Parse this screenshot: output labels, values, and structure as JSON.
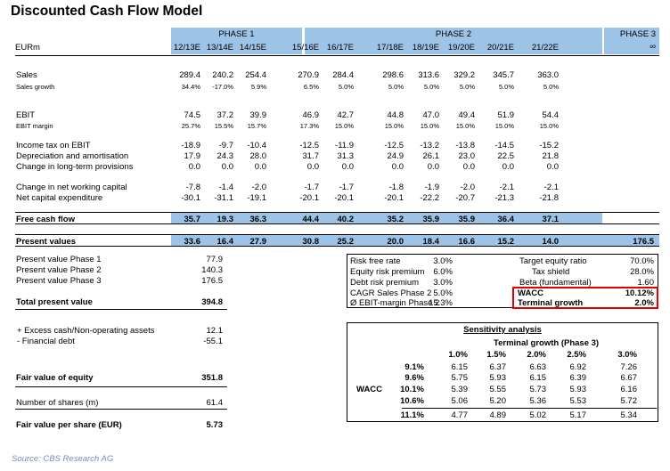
{
  "title": "Discounted Cash Flow Model",
  "unit": "EURm",
  "phases": [
    "PHASE 1",
    "PHASE 2",
    "PHASE 3"
  ],
  "years": [
    "12/13E",
    "13/14E",
    "14/15E",
    "15/16E",
    "16/17E",
    "17/18E",
    "18/19E",
    "19/20E",
    "20/21E",
    "21/22E"
  ],
  "terminal_symbol": "∞",
  "rows": [
    {
      "key": "sales",
      "label": "Sales",
      "size": "hl",
      "values": [
        "289.4",
        "240.2",
        "254.4",
        "270.9",
        "284.4",
        "298.6",
        "313.6",
        "329.2",
        "345.7",
        "363.0"
      ],
      "terminal": ""
    },
    {
      "key": "sales-growth",
      "label": "Sales growth",
      "size": "sm",
      "values": [
        "34.4%",
        "-17.0%",
        "5.9%",
        "6.5%",
        "5.0%",
        "5.0%",
        "5.0%",
        "5.0%",
        "5.0%",
        "5.0%"
      ],
      "terminal": ""
    },
    {
      "key": "ebit",
      "label": "EBIT",
      "size": "hl",
      "values": [
        "74.5",
        "37.2",
        "39.9",
        "46.9",
        "42.7",
        "44.8",
        "47.0",
        "49.4",
        "51.9",
        "54.4"
      ],
      "terminal": ""
    },
    {
      "key": "ebit-margin",
      "label": "EBIT margin",
      "size": "sm",
      "values": [
        "25.7%",
        "15.5%",
        "15.7%",
        "17.3%",
        "15.0%",
        "15.0%",
        "15.0%",
        "15.0%",
        "15.0%",
        "15.0%"
      ],
      "terminal": ""
    },
    {
      "key": "income-tax",
      "label": "Income tax on EBIT",
      "size": "hl",
      "values": [
        "-18.9",
        "-9.7",
        "-10.4",
        "-12.5",
        "-11.9",
        "-12.5",
        "-13.2",
        "-13.8",
        "-14.5",
        "-15.2"
      ],
      "terminal": ""
    },
    {
      "key": "depreciation",
      "label": "Depreciation and amortisation",
      "size": "hl",
      "values": [
        "17.9",
        "24.3",
        "28.0",
        "31.7",
        "31.3",
        "24.9",
        "26.1",
        "23.0",
        "22.5",
        "21.8"
      ],
      "terminal": ""
    },
    {
      "key": "provisions",
      "label": "Change in long-term provisions",
      "size": "hl",
      "values": [
        "0.0",
        "0.0",
        "0.0",
        "0.0",
        "0.0",
        "0.0",
        "0.0",
        "0.0",
        "0.0",
        "0.0"
      ],
      "terminal": ""
    },
    {
      "key": "nwc",
      "label": "Change in net working capital",
      "size": "hl",
      "values": [
        "-7.8",
        "-1.4",
        "-2.0",
        "-1.7",
        "-1.7",
        "-1.8",
        "-1.9",
        "-2.0",
        "-2.1",
        "-2.1"
      ],
      "terminal": ""
    },
    {
      "key": "capex",
      "label": "Net capital expenditure",
      "size": "hl",
      "values": [
        "-30.1",
        "-31.1",
        "-19.1",
        "-20.1",
        "-20.1",
        "-20.1",
        "-22.2",
        "-20.7",
        "-21.3",
        "-21.8"
      ],
      "terminal": ""
    },
    {
      "key": "fcf",
      "label": "Free cash flow",
      "size": "hl",
      "values": [
        "35.7",
        "19.3",
        "36.3",
        "44.4",
        "40.2",
        "35.2",
        "35.9",
        "35.9",
        "36.4",
        "37.1"
      ],
      "terminal": ""
    },
    {
      "key": "pv",
      "label": "Present values",
      "size": "hl",
      "values": [
        "33.6",
        "16.4",
        "27.9",
        "30.8",
        "25.2",
        "20.0",
        "18.4",
        "16.6",
        "15.2",
        "14.0"
      ],
      "terminal": "176.5"
    }
  ],
  "summary": [
    {
      "label": "Present value Phase 1",
      "value": "77.9"
    },
    {
      "label": "Present value Phase 2",
      "value": "140.3"
    },
    {
      "label": "Present value Phase 3",
      "value": "176.5"
    },
    {
      "label": "Total present value",
      "value": "394.8"
    },
    {
      "label": "+ Excess cash/Non-operating assets",
      "value": "12.1"
    },
    {
      "label": "- Financial debt",
      "value": "-55.1"
    },
    {
      "label": "Fair value of equity",
      "value": "351.8"
    },
    {
      "label": "Number of shares (m)",
      "value": "61.4"
    },
    {
      "label": "Fair value per share (EUR)",
      "value": "5.73"
    }
  ],
  "assumptions": {
    "left": [
      {
        "label": "Risk free rate",
        "value": "3.0%"
      },
      {
        "label": "Equity risk premium",
        "value": "6.0%"
      },
      {
        "label": "Debt risk premium",
        "value": "3.0%"
      },
      {
        "label": "CAGR Sales Phase 2",
        "value": "5.0%"
      },
      {
        "label": "Ø EBIT-margin Phase 2",
        "value": "15.3%"
      }
    ],
    "right": [
      {
        "label": "Target equity ratio",
        "value": "70.0%"
      },
      {
        "label": "Tax shield",
        "value": "28.0%"
      },
      {
        "label": "Beta (fundamental)",
        "value": "1.60"
      },
      {
        "label": "WACC",
        "value": "10.12%"
      },
      {
        "label": "Terminal growth",
        "value": "2.0%"
      }
    ]
  },
  "sensitivity": {
    "title": "Sensitivity analysis",
    "col_header": "Terminal growth (Phase 3)",
    "row_header": "WACC",
    "cols": [
      "1.0%",
      "1.5%",
      "2.0%",
      "2.5%",
      "3.0%"
    ],
    "rows": [
      {
        "wacc": "9.1%",
        "values": [
          "6.15",
          "6.37",
          "6.63",
          "6.92",
          "7.26"
        ]
      },
      {
        "wacc": "9.6%",
        "values": [
          "5.75",
          "5.93",
          "6.15",
          "6.39",
          "6.67"
        ]
      },
      {
        "wacc": "10.1%",
        "values": [
          "5.39",
          "5.55",
          "5.73",
          "5.93",
          "6.16"
        ]
      },
      {
        "wacc": "10.6%",
        "values": [
          "5.06",
          "5.20",
          "5.36",
          "5.53",
          "5.72"
        ]
      },
      {
        "wacc": "11.1%",
        "values": [
          "4.77",
          "4.89",
          "5.02",
          "5.17",
          "5.34"
        ]
      }
    ]
  },
  "source": "Source: CBS Research AG",
  "colors": {
    "band": "#9dc3e6",
    "highlight_border": "#e00000",
    "source": "#6d8fc0"
  }
}
